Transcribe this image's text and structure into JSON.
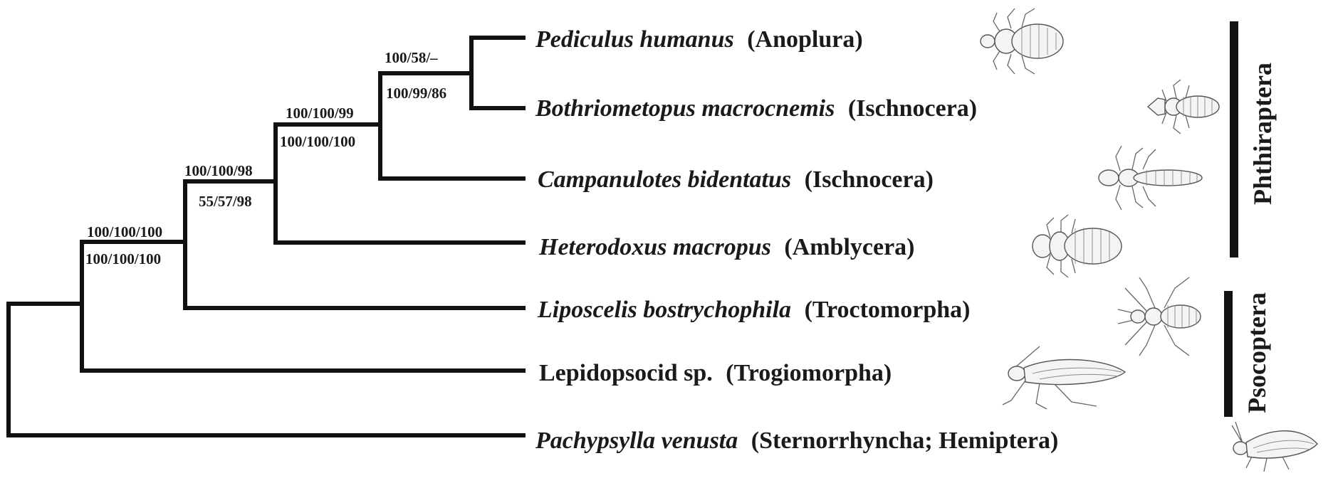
{
  "taxa": [
    {
      "species": "Pediculus humanus",
      "group": "(Anoplura)",
      "italic": true
    },
    {
      "species": "Bothriometopus macrocnemis",
      "group": "(Ischnocera)",
      "italic": true
    },
    {
      "species": "Campanulotes bidentatus",
      "group": "(Ischnocera)",
      "italic": true
    },
    {
      "species": "Heterodoxus macropus",
      "group": "(Amblycera)",
      "italic": true
    },
    {
      "species": "Liposcelis bostrychophila",
      "group": "(Troctomorpha)",
      "italic": true
    },
    {
      "species": "Lepidopsocid sp.",
      "group": "(Trogiomorpha)",
      "italic": false
    },
    {
      "species": "Pachypsylla venusta",
      "group": "(Sternorrhyncha; Hemiptera)",
      "italic": true
    }
  ],
  "nodes": [
    {
      "above": "100/58/–",
      "below": "100/99/86"
    },
    {
      "above": "100/100/99",
      "below": "100/100/100"
    },
    {
      "above": "100/100/98",
      "below": "55/57/98"
    },
    {
      "above": "100/100/100",
      "below": "100/100/100"
    }
  ],
  "clades": [
    {
      "label": "Phthiraptera"
    },
    {
      "label": "Psocoptera"
    }
  ],
  "illustrations": [
    {
      "icon": "pediculus-louse-icon"
    },
    {
      "icon": "bothriometopus-louse-icon"
    },
    {
      "icon": "campanulotes-louse-icon"
    },
    {
      "icon": "heterodoxus-louse-icon"
    },
    {
      "icon": "liposcelis-booklouse-icon"
    },
    {
      "icon": "lepidopsocid-barklouse-icon"
    },
    {
      "icon": "pachypsylla-psyllid-icon"
    }
  ]
}
